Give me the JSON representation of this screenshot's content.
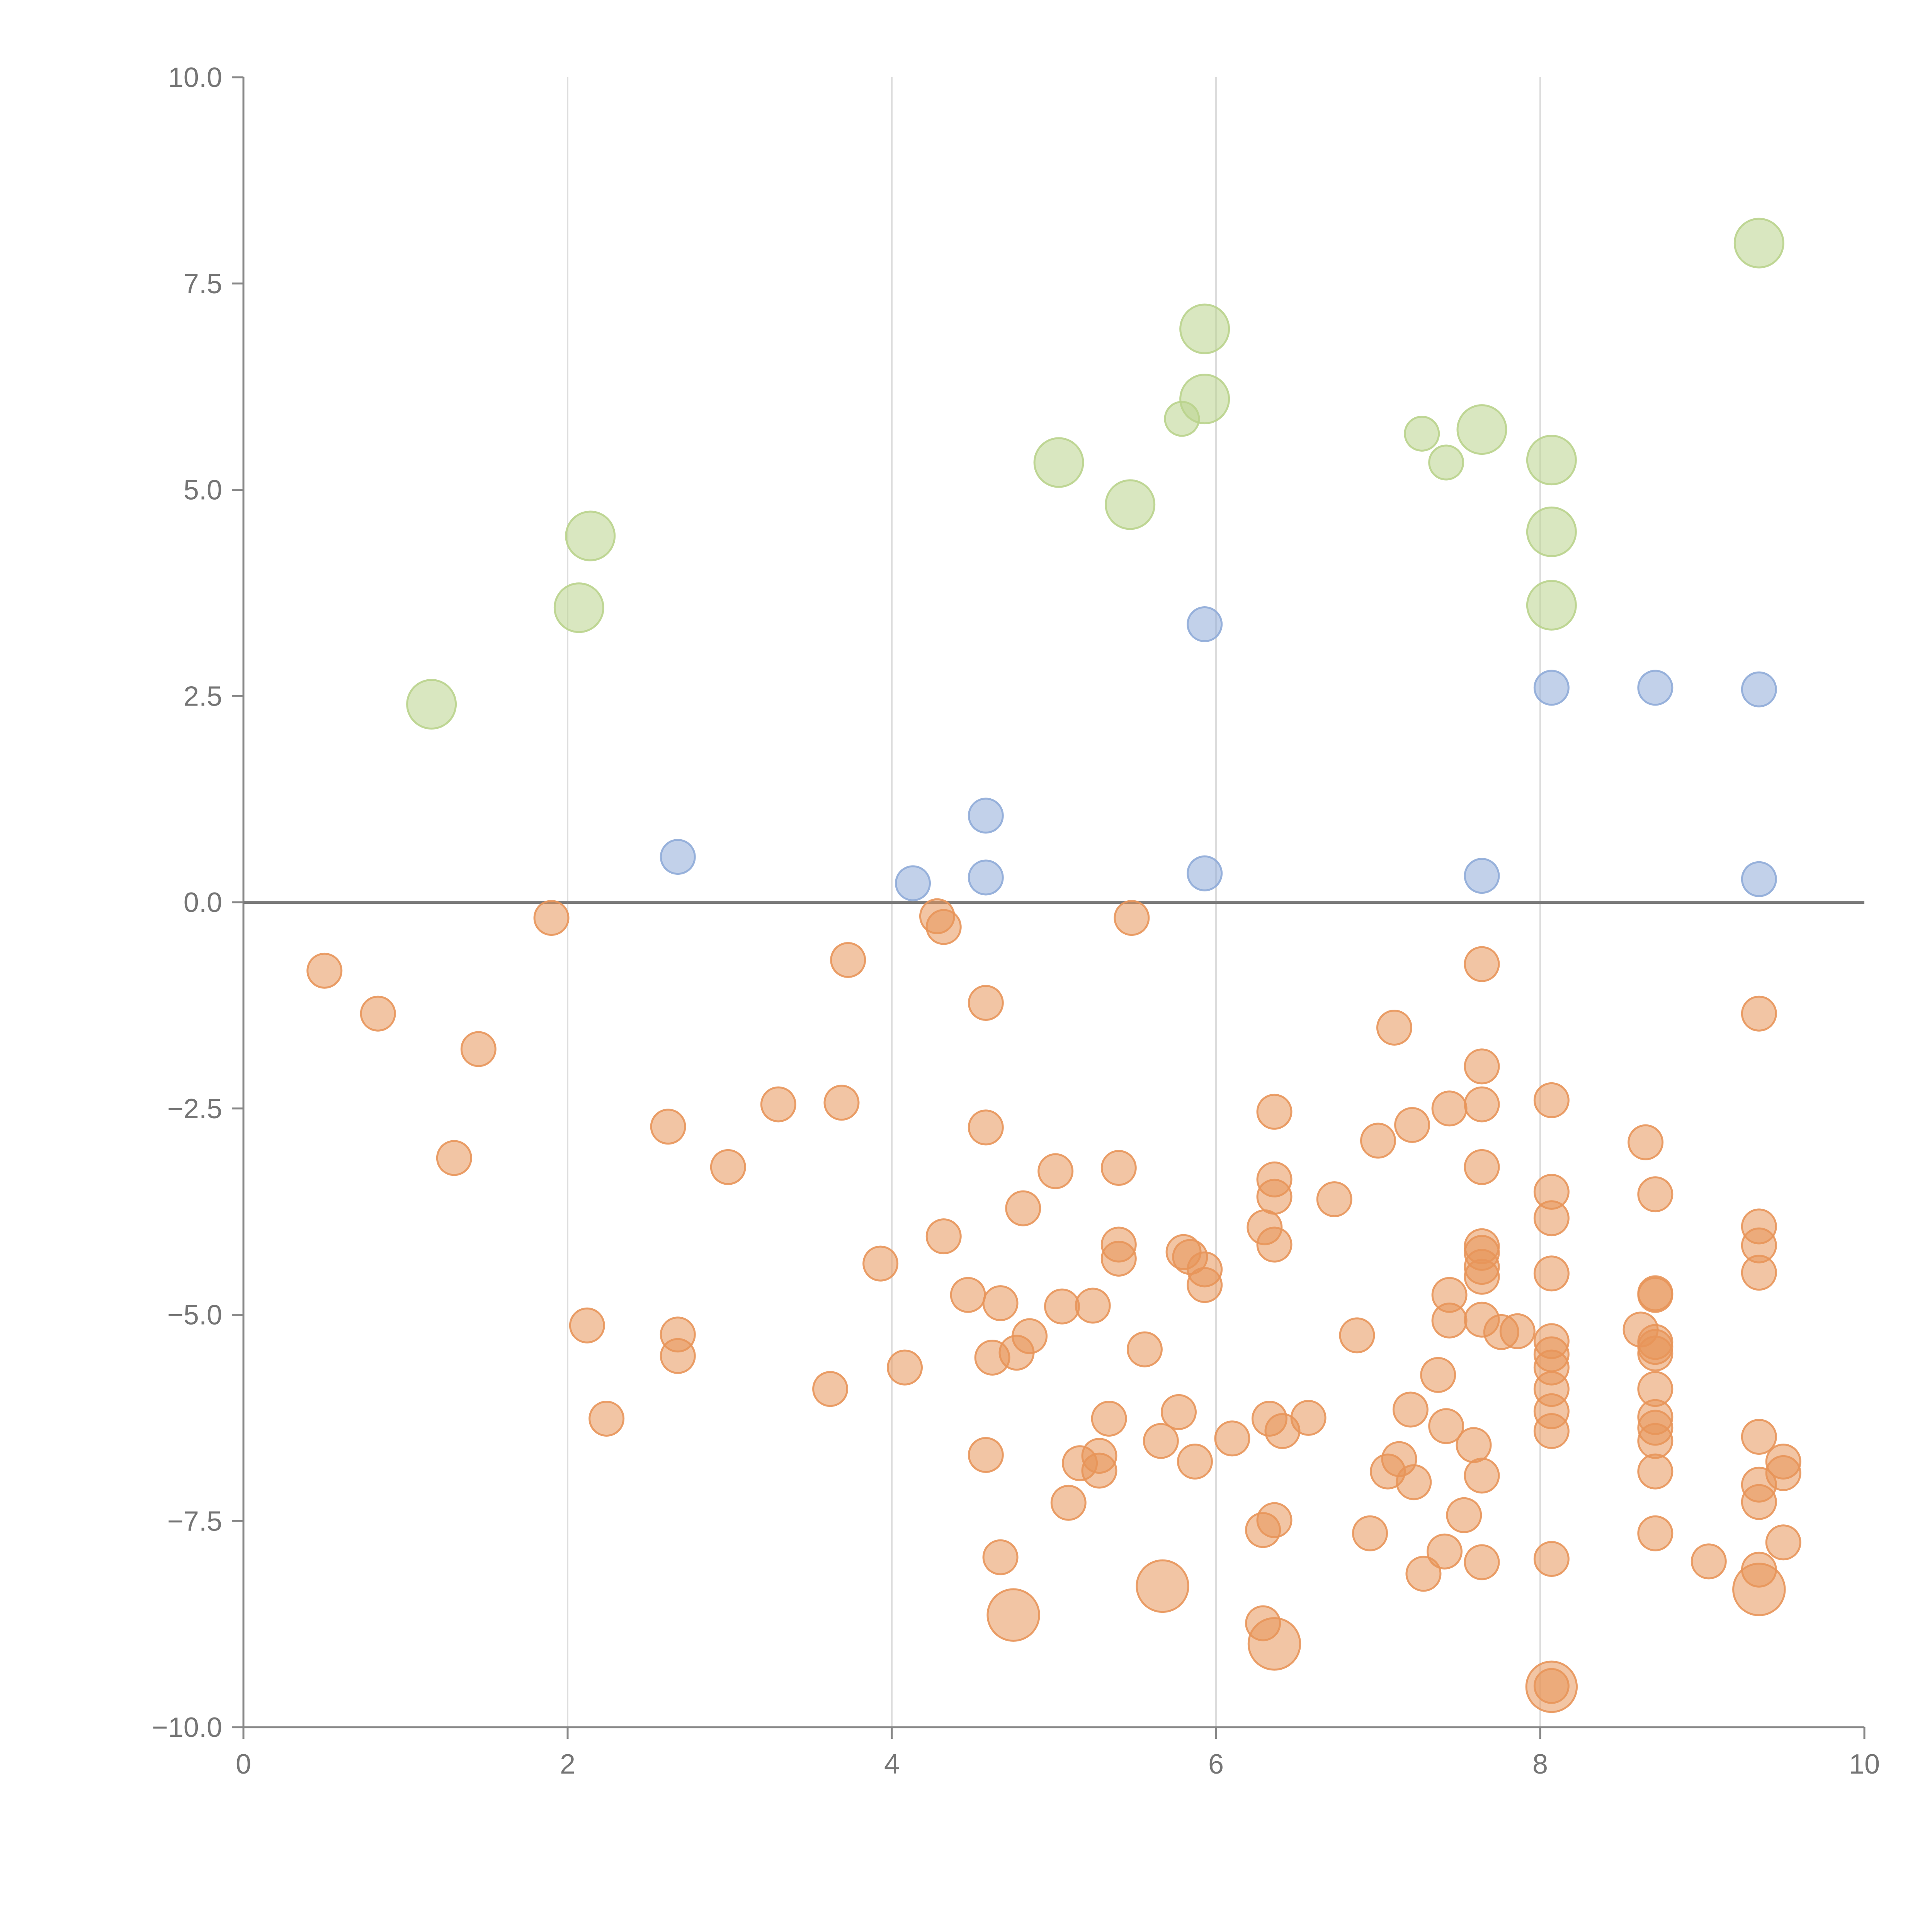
{
  "chart_data": {
    "type": "scatter",
    "title": "",
    "xlabel": "",
    "ylabel": "",
    "xlim": [
      0,
      10
    ],
    "ylim": [
      -10,
      10
    ],
    "x_ticks": [
      "0",
      "2",
      "4",
      "6",
      "8",
      "10"
    ],
    "y_ticks": [
      "10.0",
      "7.5",
      "5.0",
      "2.5",
      "0.0",
      "−2.5",
      "−5.0",
      "−7.5",
      "−10.0"
    ],
    "grid": "vertical",
    "series": [
      {
        "name": "orange",
        "color": "#e8955a",
        "points": [
          {
            "x": 0.5,
            "y": -0.83,
            "size": 1
          },
          {
            "x": 0.83,
            "y": -1.35,
            "size": 1
          },
          {
            "x": 1.45,
            "y": -1.78,
            "size": 1
          },
          {
            "x": 1.9,
            "y": -0.19,
            "size": 1
          },
          {
            "x": 1.3,
            "y": -3.1,
            "size": 1
          },
          {
            "x": 2.12,
            "y": -5.13,
            "size": 1
          },
          {
            "x": 2.24,
            "y": -6.26,
            "size": 1
          },
          {
            "x": 2.62,
            "y": -2.72,
            "size": 1
          },
          {
            "x": 2.68,
            "y": -5.24,
            "size": 1
          },
          {
            "x": 2.68,
            "y": -5.5,
            "size": 1
          },
          {
            "x": 2.99,
            "y": -3.21,
            "size": 1
          },
          {
            "x": 3.3,
            "y": -2.45,
            "size": 1
          },
          {
            "x": 3.62,
            "y": -5.9,
            "size": 1
          },
          {
            "x": 3.69,
            "y": -2.43,
            "size": 1
          },
          {
            "x": 3.73,
            "y": -0.7,
            "size": 1
          },
          {
            "x": 3.93,
            "y": -4.38,
            "size": 1
          },
          {
            "x": 4.08,
            "y": -5.64,
            "size": 1
          },
          {
            "x": 4.28,
            "y": -0.17,
            "size": 1
          },
          {
            "x": 4.32,
            "y": -0.3,
            "size": 1
          },
          {
            "x": 4.32,
            "y": -4.05,
            "size": 1
          },
          {
            "x": 4.47,
            "y": -4.76,
            "size": 1
          },
          {
            "x": 4.58,
            "y": -1.22,
            "size": 1
          },
          {
            "x": 4.58,
            "y": -2.73,
            "size": 1
          },
          {
            "x": 4.58,
            "y": -6.7,
            "size": 1
          },
          {
            "x": 4.62,
            "y": -5.52,
            "size": 1
          },
          {
            "x": 4.67,
            "y": -4.86,
            "size": 1
          },
          {
            "x": 4.67,
            "y": -7.94,
            "size": 1
          },
          {
            "x": 4.77,
            "y": -5.46,
            "size": 1
          },
          {
            "x": 4.81,
            "y": -3.71,
            "size": 1
          },
          {
            "x": 4.85,
            "y": -5.26,
            "size": 1
          },
          {
            "x": 5.01,
            "y": -3.26,
            "size": 1
          },
          {
            "x": 5.05,
            "y": -4.9,
            "size": 1
          },
          {
            "x": 5.09,
            "y": -7.28,
            "size": 1
          },
          {
            "x": 5.16,
            "y": -6.8,
            "size": 1
          },
          {
            "x": 5.24,
            "y": -4.89,
            "size": 1
          },
          {
            "x": 5.28,
            "y": -6.71,
            "size": 1
          },
          {
            "x": 5.28,
            "y": -6.89,
            "size": 1
          },
          {
            "x": 5.34,
            "y": -6.26,
            "size": 1
          },
          {
            "x": 5.4,
            "y": -3.22,
            "size": 1
          },
          {
            "x": 5.4,
            "y": -4.15,
            "size": 1
          },
          {
            "x": 5.4,
            "y": -4.32,
            "size": 1
          },
          {
            "x": 5.48,
            "y": -0.19,
            "size": 1
          },
          {
            "x": 5.56,
            "y": -5.42,
            "size": 1
          },
          {
            "x": 5.66,
            "y": -6.53,
            "size": 1
          },
          {
            "x": 5.77,
            "y": -6.18,
            "size": 1
          },
          {
            "x": 5.8,
            "y": -4.24,
            "size": 1
          },
          {
            "x": 5.84,
            "y": -4.3,
            "size": 1
          },
          {
            "x": 5.87,
            "y": -6.78,
            "size": 1
          },
          {
            "x": 5.93,
            "y": -4.45,
            "size": 1
          },
          {
            "x": 5.93,
            "y": -4.64,
            "size": 1
          },
          {
            "x": 6.1,
            "y": -6.5,
            "size": 1
          },
          {
            "x": 6.29,
            "y": -7.61,
            "size": 1
          },
          {
            "x": 6.29,
            "y": -8.74,
            "size": 1
          },
          {
            "x": 6.3,
            "y": -3.94,
            "size": 1
          },
          {
            "x": 6.33,
            "y": -6.26,
            "size": 1
          },
          {
            "x": 6.36,
            "y": -2.54,
            "size": 1
          },
          {
            "x": 6.36,
            "y": -3.36,
            "size": 1
          },
          {
            "x": 6.36,
            "y": -3.57,
            "size": 1
          },
          {
            "x": 6.36,
            "y": -4.15,
            "size": 1
          },
          {
            "x": 6.36,
            "y": -7.49,
            "size": 1
          },
          {
            "x": 6.41,
            "y": -6.41,
            "size": 1
          },
          {
            "x": 6.57,
            "y": -6.25,
            "size": 1
          },
          {
            "x": 6.73,
            "y": -3.6,
            "size": 1
          },
          {
            "x": 6.87,
            "y": -5.25,
            "size": 1
          },
          {
            "x": 6.95,
            "y": -7.65,
            "size": 1
          },
          {
            "x": 7.0,
            "y": -2.89,
            "size": 1
          },
          {
            "x": 7.06,
            "y": -6.9,
            "size": 1
          },
          {
            "x": 7.1,
            "y": -1.52,
            "size": 1
          },
          {
            "x": 7.13,
            "y": -6.75,
            "size": 1
          },
          {
            "x": 7.2,
            "y": -6.15,
            "size": 1
          },
          {
            "x": 7.21,
            "y": -2.7,
            "size": 1
          },
          {
            "x": 7.22,
            "y": -7.03,
            "size": 1
          },
          {
            "x": 7.28,
            "y": -8.14,
            "size": 1
          },
          {
            "x": 7.37,
            "y": -5.73,
            "size": 1
          },
          {
            "x": 7.41,
            "y": -7.87,
            "size": 1
          },
          {
            "x": 7.42,
            "y": -6.35,
            "size": 1
          },
          {
            "x": 7.44,
            "y": -2.5,
            "size": 1
          },
          {
            "x": 7.44,
            "y": -4.76,
            "size": 1
          },
          {
            "x": 7.44,
            "y": -5.07,
            "size": 1
          },
          {
            "x": 7.53,
            "y": -7.43,
            "size": 1
          },
          {
            "x": 7.59,
            "y": -6.58,
            "size": 1
          },
          {
            "x": 7.64,
            "y": -0.75,
            "size": 1
          },
          {
            "x": 7.64,
            "y": -1.99,
            "size": 1
          },
          {
            "x": 7.64,
            "y": -2.45,
            "size": 1
          },
          {
            "x": 7.64,
            "y": -3.21,
            "size": 1
          },
          {
            "x": 7.64,
            "y": -4.17,
            "size": 1
          },
          {
            "x": 7.64,
            "y": -4.25,
            "size": 1
          },
          {
            "x": 7.64,
            "y": -4.42,
            "size": 1
          },
          {
            "x": 7.64,
            "y": -4.54,
            "size": 1
          },
          {
            "x": 7.64,
            "y": -5.06,
            "size": 1
          },
          {
            "x": 7.64,
            "y": -6.95,
            "size": 1
          },
          {
            "x": 7.64,
            "y": -8.0,
            "size": 1
          },
          {
            "x": 7.76,
            "y": -5.21,
            "size": 1
          },
          {
            "x": 7.86,
            "y": -5.2,
            "size": 1
          },
          {
            "x": 8.07,
            "y": -2.4,
            "size": 1
          },
          {
            "x": 8.07,
            "y": -3.51,
            "size": 1
          },
          {
            "x": 8.07,
            "y": -3.83,
            "size": 1
          },
          {
            "x": 8.07,
            "y": -4.5,
            "size": 1
          },
          {
            "x": 8.07,
            "y": -5.32,
            "size": 1
          },
          {
            "x": 8.07,
            "y": -5.48,
            "size": 1
          },
          {
            "x": 8.07,
            "y": -5.64,
            "size": 1
          },
          {
            "x": 8.07,
            "y": -5.9,
            "size": 1
          },
          {
            "x": 8.07,
            "y": -6.17,
            "size": 1
          },
          {
            "x": 8.07,
            "y": -6.41,
            "size": 1
          },
          {
            "x": 8.07,
            "y": -7.96,
            "size": 1
          },
          {
            "x": 8.07,
            "y": -9.5,
            "size": 1
          },
          {
            "x": 8.07,
            "y": -9.51,
            "size": 2.2
          },
          {
            "x": 8.62,
            "y": -5.18,
            "size": 1
          },
          {
            "x": 8.65,
            "y": -2.91,
            "size": 1
          },
          {
            "x": 8.71,
            "y": -3.54,
            "size": 1
          },
          {
            "x": 8.71,
            "y": -4.74,
            "size": 1
          },
          {
            "x": 8.71,
            "y": -4.76,
            "size": 1
          },
          {
            "x": 8.71,
            "y": -5.33,
            "size": 1
          },
          {
            "x": 8.71,
            "y": -5.39,
            "size": 1
          },
          {
            "x": 8.71,
            "y": -5.47,
            "size": 1
          },
          {
            "x": 8.71,
            "y": -5.9,
            "size": 1
          },
          {
            "x": 8.71,
            "y": -6.24,
            "size": 1
          },
          {
            "x": 8.71,
            "y": -6.37,
            "size": 1
          },
          {
            "x": 8.71,
            "y": -6.53,
            "size": 1
          },
          {
            "x": 8.71,
            "y": -6.9,
            "size": 1
          },
          {
            "x": 8.71,
            "y": -7.65,
            "size": 1
          },
          {
            "x": 9.04,
            "y": -7.99,
            "size": 1
          },
          {
            "x": 9.35,
            "y": -1.35,
            "size": 1
          },
          {
            "x": 9.35,
            "y": -3.93,
            "size": 1
          },
          {
            "x": 9.35,
            "y": -4.16,
            "size": 1
          },
          {
            "x": 9.35,
            "y": -4.49,
            "size": 1
          },
          {
            "x": 9.35,
            "y": -6.48,
            "size": 1
          },
          {
            "x": 9.35,
            "y": -7.06,
            "size": 1
          },
          {
            "x": 9.35,
            "y": -7.27,
            "size": 1
          },
          {
            "x": 9.35,
            "y": -8.09,
            "size": 1
          },
          {
            "x": 9.35,
            "y": -8.33,
            "size": 2.3
          },
          {
            "x": 9.5,
            "y": -6.78,
            "size": 1
          },
          {
            "x": 9.5,
            "y": -6.92,
            "size": 1
          },
          {
            "x": 9.5,
            "y": -7.76,
            "size": 1
          },
          {
            "x": 4.75,
            "y": -8.64,
            "size": 2.3
          },
          {
            "x": 5.67,
            "y": -8.29,
            "size": 2.3
          },
          {
            "x": 6.36,
            "y": -8.99,
            "size": 2.3
          }
        ]
      },
      {
        "name": "blue",
        "color": "#8fabd8",
        "points": [
          {
            "x": 2.68,
            "y": 0.55,
            "size": 1
          },
          {
            "x": 4.13,
            "y": 0.23,
            "size": 1
          },
          {
            "x": 4.58,
            "y": 1.05,
            "size": 1
          },
          {
            "x": 4.58,
            "y": 0.3,
            "size": 1
          },
          {
            "x": 5.93,
            "y": 3.37,
            "size": 1
          },
          {
            "x": 5.93,
            "y": 0.35,
            "size": 1
          },
          {
            "x": 7.64,
            "y": 0.32,
            "size": 1
          },
          {
            "x": 8.07,
            "y": 2.6,
            "size": 1
          },
          {
            "x": 8.71,
            "y": 2.6,
            "size": 1
          },
          {
            "x": 9.35,
            "y": 2.58,
            "size": 1
          },
          {
            "x": 9.35,
            "y": 0.28,
            "size": 1
          }
        ]
      },
      {
        "name": "green",
        "color": "#b9d38c",
        "points": [
          {
            "x": 1.16,
            "y": 2.4,
            "size": 2.05
          },
          {
            "x": 2.07,
            "y": 3.57,
            "size": 2.05
          },
          {
            "x": 2.14,
            "y": 4.44,
            "size": 2.05
          },
          {
            "x": 5.03,
            "y": 5.33,
            "size": 2.05
          },
          {
            "x": 5.47,
            "y": 4.82,
            "size": 2.05
          },
          {
            "x": 5.79,
            "y": 5.86,
            "size": 1
          },
          {
            "x": 5.93,
            "y": 6.95,
            "size": 2.05
          },
          {
            "x": 5.93,
            "y": 6.1,
            "size": 2.05
          },
          {
            "x": 7.27,
            "y": 5.68,
            "size": 1
          },
          {
            "x": 7.42,
            "y": 5.33,
            "size": 1
          },
          {
            "x": 7.64,
            "y": 5.73,
            "size": 2.05
          },
          {
            "x": 8.07,
            "y": 5.36,
            "size": 2.05
          },
          {
            "x": 8.07,
            "y": 4.49,
            "size": 2.05
          },
          {
            "x": 8.07,
            "y": 3.6,
            "size": 2.05
          },
          {
            "x": 9.35,
            "y": 7.99,
            "size": 2.05
          }
        ]
      }
    ],
    "annotations": []
  }
}
